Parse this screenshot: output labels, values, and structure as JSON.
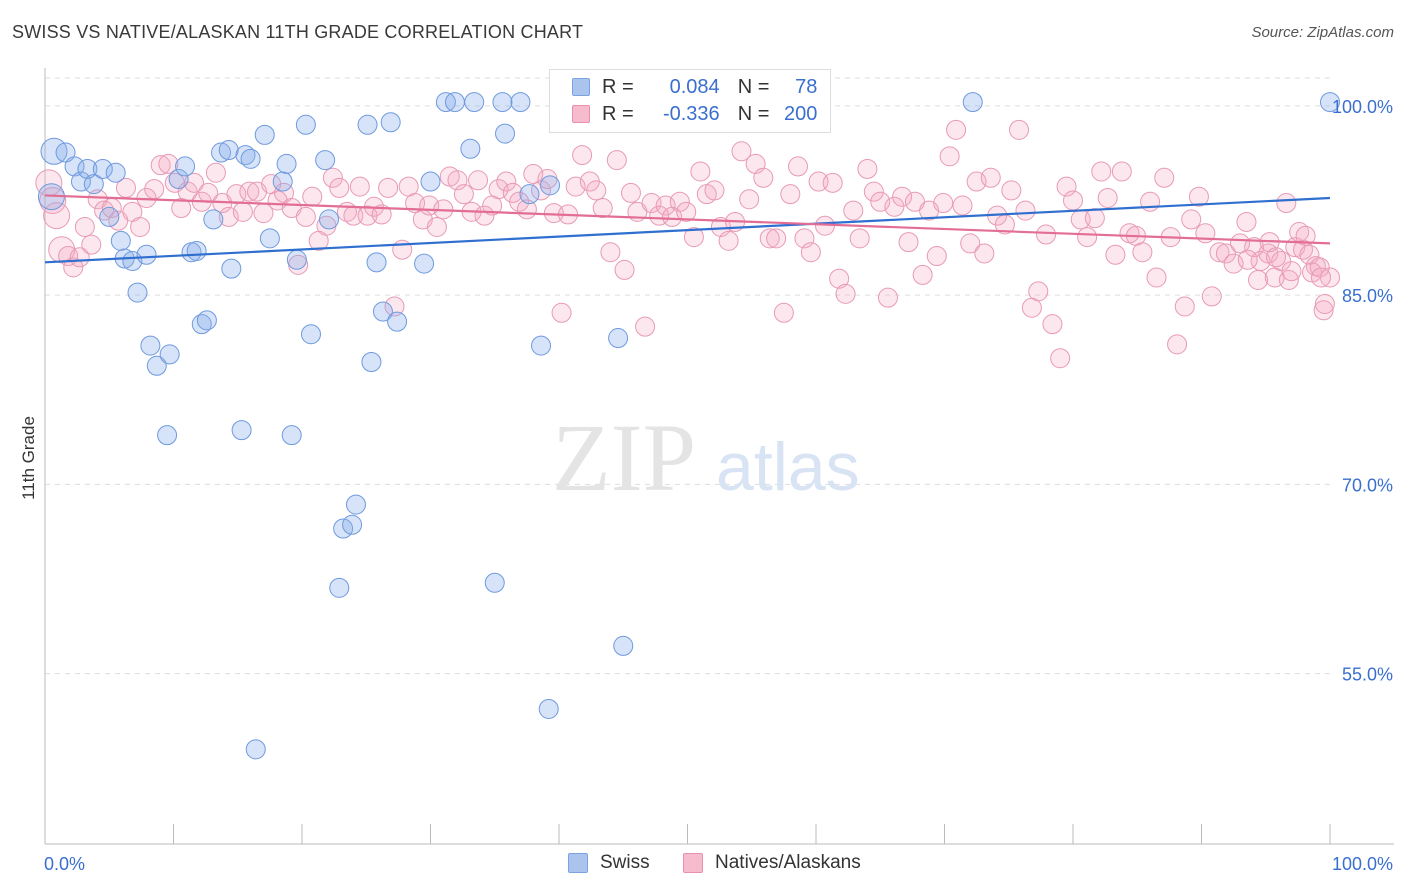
{
  "title": "SWISS VS NATIVE/ALASKAN 11TH GRADE CORRELATION CHART",
  "source": "Source: ZipAtlas.com",
  "watermark": {
    "zip": "ZIP",
    "atlas": "atlas"
  },
  "legend": {
    "r_label": "R =",
    "n_label": "N =",
    "rows": [
      {
        "r": "0.084",
        "n": "78",
        "color": "#7ba3e0",
        "fill": "#aac4ee"
      },
      {
        "r": "-0.336",
        "n": "200",
        "color": "#e890ad",
        "fill": "#f6bccd"
      }
    ]
  },
  "bottom_legend": [
    "Swiss",
    "Natives/Alaskans"
  ],
  "colors": {
    "blue": "#2f6fcf",
    "pink": "#e26d95",
    "axis_text": "#3a6fcf",
    "grid": "#dddddd"
  },
  "chart_data": {
    "type": "scatter",
    "title": "SWISS VS NATIVE/ALASKAN 11TH GRADE CORRELATION CHART",
    "xlabel": "",
    "ylabel": "11th Grade",
    "xlim": [
      0,
      100
    ],
    "ylim": [
      41.5,
      103.0
    ],
    "x_tick_labels": [
      "0.0%",
      "100.0%"
    ],
    "y_ticks": [
      55.0,
      70.0,
      85.0,
      100.0
    ],
    "y_tick_labels": [
      "55.0%",
      "70.0%",
      "85.0%",
      "100.0%"
    ],
    "grid": true,
    "legend_position": "top-center",
    "series": [
      {
        "name": "Swiss",
        "R": 0.084,
        "N": 78,
        "trend": {
          "x": [
            0,
            100
          ],
          "y": [
            87.6,
            92.7
          ]
        },
        "points": [
          [
            0.5,
            92.8
          ],
          [
            0.7,
            96.4
          ],
          [
            1.6,
            96.3
          ],
          [
            2.3,
            95.2
          ],
          [
            2.8,
            94.0
          ],
          [
            3.3,
            95.0
          ],
          [
            3.8,
            93.8
          ],
          [
            4.5,
            95.0
          ],
          [
            5.0,
            91.2
          ],
          [
            5.5,
            94.7
          ],
          [
            5.9,
            89.3
          ],
          [
            6.2,
            87.9
          ],
          [
            6.8,
            87.7
          ],
          [
            7.2,
            85.2
          ],
          [
            7.9,
            88.2
          ],
          [
            8.2,
            81.0
          ],
          [
            8.7,
            79.4
          ],
          [
            9.5,
            73.9
          ],
          [
            9.7,
            80.3
          ],
          [
            10.4,
            94.2
          ],
          [
            10.9,
            95.2
          ],
          [
            11.4,
            88.4
          ],
          [
            11.8,
            88.5
          ],
          [
            12.2,
            82.7
          ],
          [
            12.6,
            83.0
          ],
          [
            13.1,
            91.0
          ],
          [
            13.7,
            96.3
          ],
          [
            14.3,
            96.5
          ],
          [
            14.5,
            87.1
          ],
          [
            15.3,
            74.3
          ],
          [
            15.6,
            96.1
          ],
          [
            16.0,
            95.8
          ],
          [
            16.4,
            49.0
          ],
          [
            17.1,
            97.7
          ],
          [
            17.5,
            89.5
          ],
          [
            18.5,
            94.0
          ],
          [
            18.8,
            95.4
          ],
          [
            19.2,
            73.9
          ],
          [
            19.6,
            87.8
          ],
          [
            20.3,
            98.5
          ],
          [
            20.7,
            81.9
          ],
          [
            21.8,
            95.7
          ],
          [
            22.1,
            91.0
          ],
          [
            22.9,
            61.8
          ],
          [
            23.2,
            66.5
          ],
          [
            23.9,
            66.8
          ],
          [
            24.2,
            68.4
          ],
          [
            25.1,
            98.5
          ],
          [
            25.4,
            79.7
          ],
          [
            25.8,
            87.6
          ],
          [
            26.3,
            83.7
          ],
          [
            26.9,
            98.7
          ],
          [
            27.4,
            82.9
          ],
          [
            29.5,
            87.5
          ],
          [
            30.0,
            94.0
          ],
          [
            31.2,
            100.3
          ],
          [
            31.9,
            100.3
          ],
          [
            33.1,
            96.6
          ],
          [
            33.4,
            100.3
          ],
          [
            35.0,
            62.2
          ],
          [
            35.6,
            100.3
          ],
          [
            35.8,
            97.8
          ],
          [
            37.0,
            100.3
          ],
          [
            37.7,
            93.0
          ],
          [
            38.6,
            81.0
          ],
          [
            39.3,
            93.7
          ],
          [
            39.2,
            52.2
          ],
          [
            41.3,
            100.3
          ],
          [
            44.6,
            81.6
          ],
          [
            45.0,
            57.2
          ],
          [
            46.0,
            100.3
          ],
          [
            47.2,
            100.3
          ],
          [
            48.9,
            100.3
          ],
          [
            50.6,
            100.3
          ],
          [
            52.1,
            100.3
          ],
          [
            53.2,
            100.3
          ],
          [
            72.2,
            100.3
          ],
          [
            100.0,
            100.3
          ]
        ]
      },
      {
        "name": "Natives/Alaskans",
        "R": -0.336,
        "N": 200,
        "trend": {
          "x": [
            0,
            100
          ],
          "y": [
            92.9,
            89.1
          ]
        },
        "points": [
          [
            0.3,
            93.9
          ],
          [
            0.6,
            92.5
          ],
          [
            0.9,
            91.3
          ],
          [
            1.3,
            88.6
          ],
          [
            1.8,
            88.1
          ],
          [
            2.2,
            87.2
          ],
          [
            2.7,
            88.0
          ],
          [
            3.1,
            90.4
          ],
          [
            3.6,
            89.0
          ],
          [
            4.1,
            92.6
          ],
          [
            4.6,
            91.7
          ],
          [
            5.2,
            91.9
          ],
          [
            5.7,
            90.9
          ],
          [
            6.3,
            93.5
          ],
          [
            6.8,
            91.6
          ],
          [
            7.4,
            90.4
          ],
          [
            7.9,
            92.7
          ],
          [
            8.5,
            93.4
          ],
          [
            9.0,
            95.3
          ],
          [
            9.6,
            95.4
          ],
          [
            10.1,
            93.9
          ],
          [
            10.6,
            91.9
          ],
          [
            11.1,
            93.2
          ],
          [
            11.6,
            93.9
          ],
          [
            12.2,
            92.4
          ],
          [
            12.7,
            93.1
          ],
          [
            13.3,
            94.7
          ],
          [
            13.8,
            92.3
          ],
          [
            14.3,
            91.2
          ],
          [
            14.9,
            93.0
          ],
          [
            15.4,
            91.6
          ],
          [
            15.9,
            93.2
          ],
          [
            16.5,
            93.2
          ],
          [
            17.0,
            91.5
          ],
          [
            17.6,
            93.8
          ],
          [
            18.1,
            92.5
          ],
          [
            18.6,
            93.1
          ],
          [
            19.2,
            91.9
          ],
          [
            19.7,
            87.4
          ],
          [
            20.3,
            91.2
          ],
          [
            20.8,
            92.8
          ],
          [
            21.3,
            89.3
          ],
          [
            21.9,
            90.5
          ],
          [
            22.4,
            94.3
          ],
          [
            22.9,
            93.5
          ],
          [
            23.5,
            91.6
          ],
          [
            24.0,
            91.3
          ],
          [
            24.5,
            93.6
          ],
          [
            25.1,
            91.3
          ],
          [
            25.6,
            92.0
          ],
          [
            26.2,
            91.4
          ],
          [
            26.7,
            93.5
          ],
          [
            27.2,
            84.1
          ],
          [
            27.8,
            88.6
          ],
          [
            28.3,
            93.6
          ],
          [
            28.8,
            92.3
          ],
          [
            29.4,
            91.0
          ],
          [
            29.9,
            92.1
          ],
          [
            30.5,
            90.4
          ],
          [
            31.0,
            91.8
          ],
          [
            31.5,
            94.4
          ],
          [
            32.1,
            94.1
          ],
          [
            32.6,
            93.0
          ],
          [
            33.2,
            91.6
          ],
          [
            33.7,
            94.1
          ],
          [
            34.2,
            91.3
          ],
          [
            34.8,
            92.1
          ],
          [
            35.3,
            93.4
          ],
          [
            35.9,
            94.0
          ],
          [
            36.4,
            93.1
          ],
          [
            36.9,
            92.4
          ],
          [
            37.5,
            91.8
          ],
          [
            38.0,
            94.6
          ],
          [
            38.6,
            93.3
          ],
          [
            39.1,
            94.2
          ],
          [
            39.6,
            91.5
          ],
          [
            40.2,
            83.6
          ],
          [
            40.7,
            91.4
          ],
          [
            41.3,
            93.6
          ],
          [
            41.8,
            96.1
          ],
          [
            42.4,
            94.0
          ],
          [
            42.9,
            93.3
          ],
          [
            43.4,
            91.9
          ],
          [
            44.0,
            88.4
          ],
          [
            44.5,
            95.7
          ],
          [
            45.1,
            87.0
          ],
          [
            45.6,
            93.1
          ],
          [
            46.1,
            91.6
          ],
          [
            46.7,
            82.5
          ],
          [
            47.2,
            92.3
          ],
          [
            47.8,
            91.3
          ],
          [
            48.3,
            92.1
          ],
          [
            48.8,
            91.2
          ],
          [
            49.4,
            92.4
          ],
          [
            49.9,
            91.6
          ],
          [
            50.5,
            89.6
          ],
          [
            51.0,
            94.8
          ],
          [
            51.5,
            93.0
          ],
          [
            52.1,
            93.3
          ],
          [
            52.6,
            90.4
          ],
          [
            53.2,
            89.3
          ],
          [
            53.7,
            90.8
          ],
          [
            54.2,
            96.4
          ],
          [
            54.8,
            92.6
          ],
          [
            55.3,
            95.4
          ],
          [
            55.9,
            94.3
          ],
          [
            56.4,
            89.5
          ],
          [
            56.9,
            89.5
          ],
          [
            57.5,
            83.6
          ],
          [
            58.0,
            93.0
          ],
          [
            58.6,
            95.2
          ],
          [
            59.1,
            89.5
          ],
          [
            59.6,
            88.4
          ],
          [
            60.2,
            94.0
          ],
          [
            60.7,
            90.5
          ],
          [
            61.3,
            93.9
          ],
          [
            61.8,
            86.3
          ],
          [
            62.3,
            85.1
          ],
          [
            62.9,
            91.7
          ],
          [
            63.4,
            89.5
          ],
          [
            64.0,
            95.0
          ],
          [
            64.5,
            93.2
          ],
          [
            65.0,
            92.4
          ],
          [
            65.6,
            84.8
          ],
          [
            66.1,
            92.0
          ],
          [
            66.7,
            92.8
          ],
          [
            67.2,
            89.2
          ],
          [
            67.7,
            92.4
          ],
          [
            68.3,
            86.6
          ],
          [
            68.8,
            91.7
          ],
          [
            69.4,
            88.1
          ],
          [
            69.9,
            92.3
          ],
          [
            70.4,
            96.0
          ],
          [
            70.9,
            98.1
          ],
          [
            71.4,
            92.1
          ],
          [
            72.0,
            89.1
          ],
          [
            72.5,
            94.0
          ],
          [
            73.1,
            88.3
          ],
          [
            73.6,
            94.3
          ],
          [
            74.1,
            91.3
          ],
          [
            74.7,
            90.6
          ],
          [
            75.2,
            93.3
          ],
          [
            75.8,
            98.1
          ],
          [
            76.3,
            91.7
          ],
          [
            76.8,
            84.0
          ],
          [
            77.3,
            85.3
          ],
          [
            77.9,
            89.8
          ],
          [
            78.4,
            82.7
          ],
          [
            79.0,
            80.0
          ],
          [
            79.5,
            93.6
          ],
          [
            80.0,
            92.5
          ],
          [
            80.6,
            91.0
          ],
          [
            81.1,
            89.6
          ],
          [
            81.7,
            91.1
          ],
          [
            82.2,
            94.8
          ],
          [
            82.7,
            92.7
          ],
          [
            83.3,
            88.2
          ],
          [
            83.8,
            94.8
          ],
          [
            84.4,
            89.9
          ],
          [
            84.9,
            89.7
          ],
          [
            85.4,
            88.4
          ],
          [
            86.0,
            92.4
          ],
          [
            86.5,
            86.4
          ],
          [
            87.1,
            94.3
          ],
          [
            87.6,
            89.6
          ],
          [
            88.1,
            81.1
          ],
          [
            88.7,
            84.1
          ],
          [
            89.2,
            91.0
          ],
          [
            89.8,
            92.8
          ],
          [
            90.3,
            89.9
          ],
          [
            90.8,
            84.9
          ],
          [
            91.4,
            88.4
          ],
          [
            91.9,
            88.3
          ],
          [
            92.5,
            87.5
          ],
          [
            93.0,
            89.1
          ],
          [
            93.5,
            90.8
          ],
          [
            94.1,
            88.8
          ],
          [
            94.6,
            87.7
          ],
          [
            95.2,
            88.3
          ],
          [
            95.7,
            86.4
          ],
          [
            96.2,
            87.7
          ],
          [
            96.8,
            86.2
          ],
          [
            97.3,
            88.8
          ],
          [
            97.9,
            88.6
          ],
          [
            98.4,
            88.2
          ],
          [
            98.9,
            87.3
          ],
          [
            99.5,
            83.8
          ],
          [
            100.0,
            86.4
          ],
          [
            96.6,
            92.3
          ],
          [
            95.3,
            89.2
          ],
          [
            97.6,
            90.0
          ],
          [
            98.1,
            89.7
          ],
          [
            98.6,
            86.8
          ],
          [
            99.2,
            87.2
          ],
          [
            99.6,
            84.3
          ],
          [
            99.3,
            86.4
          ],
          [
            97.0,
            86.9
          ],
          [
            95.8,
            88.0
          ],
          [
            94.4,
            86.2
          ],
          [
            93.6,
            87.8
          ]
        ]
      }
    ]
  }
}
